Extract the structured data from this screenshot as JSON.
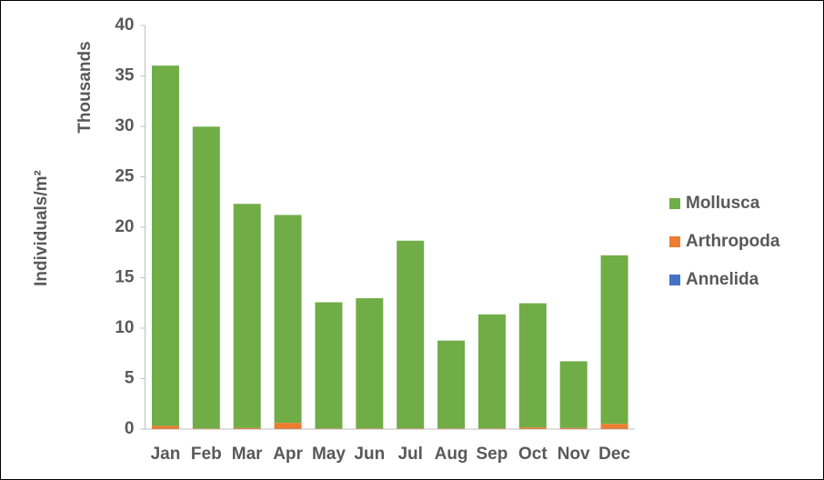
{
  "chart_data": {
    "type": "stacked-bar",
    "y_label": "Individuals/m²",
    "y_unit_label": "Thousands",
    "categories": [
      "Jan",
      "Feb",
      "Mar",
      "Apr",
      "May",
      "Jun",
      "Jul",
      "Aug",
      "Sep",
      "Oct",
      "Nov",
      "Dec"
    ],
    "series": [
      {
        "name": "Annelida",
        "color": "#4472c4",
        "values": [
          0.02,
          0.02,
          0.02,
          0.02,
          0.02,
          0.02,
          0.02,
          0.02,
          0.02,
          0.02,
          0.02,
          0.02
        ]
      },
      {
        "name": "Arthropoda",
        "color": "#ed7d31",
        "values": [
          0.3,
          0.05,
          0.1,
          0.6,
          0.05,
          0.05,
          0.05,
          0.05,
          0.05,
          0.15,
          0.1,
          0.5
        ]
      },
      {
        "name": "Mollusca",
        "color": "#70ad47",
        "values": [
          35.7,
          29.9,
          22.2,
          20.6,
          12.5,
          12.9,
          18.6,
          8.7,
          11.3,
          12.3,
          6.6,
          16.7
        ]
      }
    ],
    "ylim": [
      0,
      40
    ],
    "yticks": [
      0,
      5,
      10,
      15,
      20,
      25,
      30,
      35,
      40
    ],
    "legend": "right"
  }
}
